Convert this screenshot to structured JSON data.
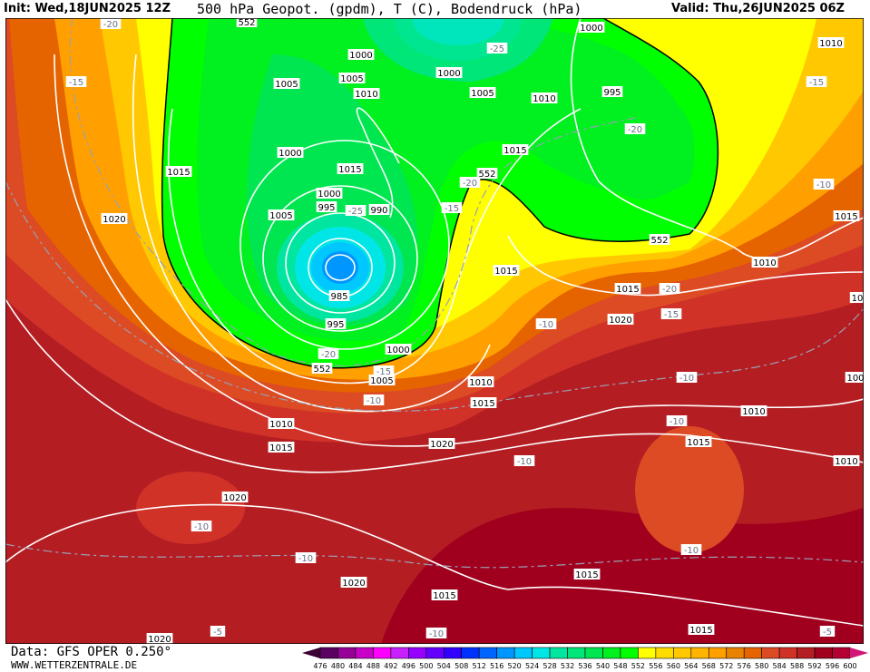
{
  "header": {
    "init": "Init: Wed,18JUN2025 12Z",
    "title": "500 hPa Geopot. (gpdm), T (C), Bodendruck (hPa)",
    "valid": "Valid: Thu,26JUN2025 06Z"
  },
  "footer": {
    "data_source": "Data: GFS OPER 0.250°",
    "website": "WWW.WETTERZENTRALE.DE"
  },
  "colorbar": {
    "labels": [
      "476",
      "480",
      "484",
      "488",
      "492",
      "496",
      "500",
      "504",
      "508",
      "512",
      "516",
      "520",
      "524",
      "528",
      "532",
      "536",
      "540",
      "548",
      "552",
      "556",
      "560",
      "564",
      "568",
      "572",
      "576",
      "580",
      "584",
      "588",
      "592",
      "596",
      "600"
    ],
    "colors": [
      "#5a0060",
      "#960096",
      "#c800c8",
      "#ff00ff",
      "#c820ff",
      "#9600ff",
      "#6400ff",
      "#3200ff",
      "#0032ff",
      "#0064ff",
      "#0096ff",
      "#00c8ff",
      "#00e6e6",
      "#00e6a0",
      "#00e678",
      "#00e650",
      "#00f020",
      "#00ff00",
      "#ffff00",
      "#ffdc00",
      "#ffc800",
      "#ffb400",
      "#ffa000",
      "#e88200",
      "#e66400",
      "#dc4b23",
      "#d03228",
      "#b41e23",
      "#a0001e",
      "#b40032"
    ],
    "low_arrow_color": "#3c0032",
    "high_arrow_color": "#d21478"
  },
  "map": {
    "labels": [
      "1000",
      "1010",
      "552",
      "-20",
      "-15",
      "1005",
      "1005",
      "1000",
      "1010",
      "1000",
      "-25",
      "1005",
      "1010",
      "995",
      "-15",
      "-20",
      "1015",
      "1000",
      "1015",
      "1015",
      "-20",
      "552",
      "1000",
      "995",
      "-25",
      "990",
      "1005",
      "-15",
      "1020",
      "-10",
      "1015",
      "552",
      "1015",
      "1010",
      "1015",
      "-20",
      "10",
      "985",
      "-10",
      "1020",
      "-15",
      "995",
      "1000",
      "-20",
      "552",
      "-15",
      "1005",
      "1010",
      "-10",
      "1015",
      "-10",
      "100",
      "1010",
      "-10",
      "1010",
      "1015",
      "1020",
      "1015",
      "-10",
      "1010",
      "1020",
      "-10",
      "-10",
      "-10",
      "1020",
      "1015",
      "1015",
      "-10",
      "1020",
      "-5",
      "1015",
      "-5"
    ]
  }
}
